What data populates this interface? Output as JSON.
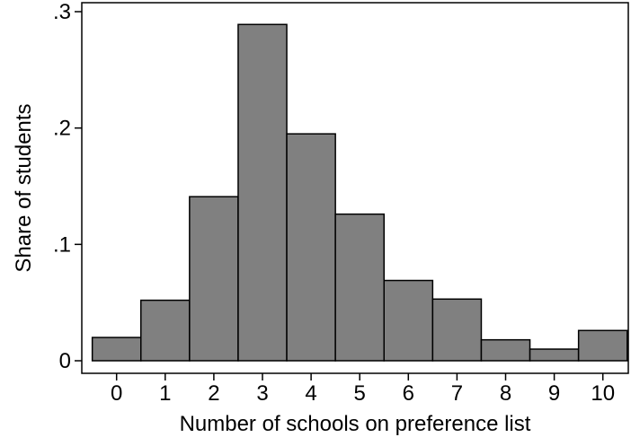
{
  "chart_data": {
    "type": "bar",
    "title": "",
    "xlabel": "Number of schools on preference list",
    "ylabel": "Share of students",
    "categories": [
      "0",
      "1",
      "2",
      "3",
      "4",
      "5",
      "6",
      "7",
      "8",
      "9",
      "10"
    ],
    "values": [
      0.02,
      0.052,
      0.141,
      0.289,
      0.195,
      0.126,
      0.069,
      0.053,
      0.018,
      0.01,
      0.026
    ],
    "ylim": [
      0,
      0.3
    ],
    "yticks": [
      {
        "value": 0,
        "label": "0"
      },
      {
        "value": 0.1,
        "label": ".1"
      },
      {
        "value": 0.2,
        "label": ".2"
      },
      {
        "value": 0.3,
        "label": ".3"
      }
    ],
    "grid": false,
    "legend": "none",
    "bar_color": "#808080",
    "bar_edge_color": "#000000"
  }
}
